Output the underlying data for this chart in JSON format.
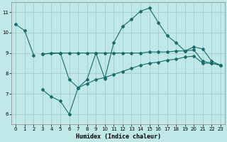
{
  "xlabel": "Humidex (Indice chaleur)",
  "bg_color": "#c0e8e8",
  "grid_color": "#a8d0d0",
  "line_color": "#1a6b6b",
  "xlim": [
    -0.5,
    23.5
  ],
  "ylim": [
    5.5,
    11.5
  ],
  "xticks": [
    0,
    1,
    2,
    3,
    4,
    5,
    6,
    7,
    8,
    9,
    10,
    11,
    12,
    13,
    14,
    15,
    16,
    17,
    18,
    19,
    20,
    21,
    22,
    23
  ],
  "yticks": [
    6,
    7,
    8,
    9,
    10,
    11
  ],
  "series": [
    {
      "x": [
        0,
        1,
        2
      ],
      "y": [
        10.4,
        10.1,
        8.9
      ]
    },
    {
      "x": [
        3,
        4,
        5,
        6,
        7,
        8,
        9,
        10,
        11,
        12,
        13,
        14,
        15,
        16,
        17,
        18,
        19,
        20,
        21,
        22,
        23
      ],
      "y": [
        8.95,
        9.0,
        9.0,
        9.0,
        9.0,
        9.0,
        9.0,
        9.0,
        9.0,
        9.0,
        9.0,
        9.0,
        9.05,
        9.05,
        9.05,
        9.1,
        9.1,
        9.15,
        8.6,
        8.5,
        8.4
      ]
    },
    {
      "x": [
        3,
        4,
        5,
        6,
        7,
        8,
        9,
        10,
        11,
        12,
        13,
        14,
        15,
        16,
        17,
        18,
        19,
        20,
        21,
        22,
        23
      ],
      "y": [
        7.2,
        6.85,
        6.65,
        6.0,
        7.3,
        7.5,
        7.7,
        7.8,
        7.95,
        8.1,
        8.25,
        8.4,
        8.5,
        8.55,
        8.65,
        8.7,
        8.8,
        8.85,
        8.5,
        8.5,
        8.4
      ]
    },
    {
      "x": [
        3,
        5,
        6,
        7,
        8,
        9,
        10,
        11,
        12,
        13,
        14,
        15,
        16,
        17,
        18,
        19,
        20,
        21,
        22,
        23
      ],
      "y": [
        8.95,
        9.0,
        7.7,
        7.3,
        7.7,
        9.0,
        7.75,
        9.5,
        10.3,
        10.65,
        11.05,
        11.2,
        10.5,
        9.85,
        9.5,
        9.1,
        9.3,
        9.2,
        8.6,
        8.4
      ]
    }
  ]
}
